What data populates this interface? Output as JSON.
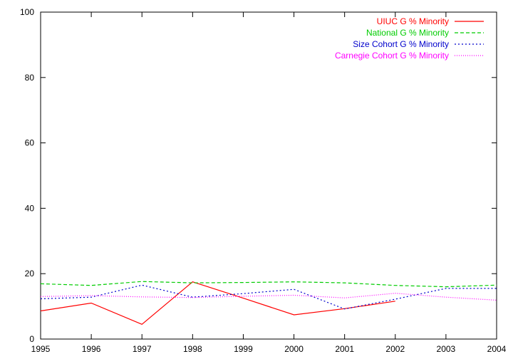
{
  "chart_data": {
    "type": "line",
    "title": "",
    "xlabel": "",
    "ylabel": "",
    "xlim": [
      1995,
      2004
    ],
    "ylim": [
      0,
      100
    ],
    "x_ticks": [
      "1995",
      "1996",
      "1997",
      "1998",
      "1999",
      "2000",
      "2001",
      "2002",
      "2003",
      "2004"
    ],
    "y_ticks": [
      "0",
      "20",
      "40",
      "60",
      "80",
      "100"
    ],
    "grid": false,
    "legend_position": "top-right",
    "series": [
      {
        "name": "UIUC G % Minority",
        "color": "#ff0000",
        "dash": "solid",
        "x": [
          1995,
          1996,
          1997,
          1998,
          1999,
          2000,
          2001,
          2002
        ],
        "y": [
          8.6,
          11.0,
          4.5,
          17.5,
          12.5,
          7.4,
          9.3,
          11.6
        ]
      },
      {
        "name": "National G % Minority",
        "color": "#00cc00",
        "dash": "dashed",
        "x": [
          1995,
          1996,
          1997,
          1998,
          1999,
          2000,
          2001,
          2002,
          2003,
          2004
        ],
        "y": [
          16.9,
          16.4,
          17.6,
          17.2,
          17.3,
          17.5,
          17.2,
          16.4,
          16.0,
          16.5
        ]
      },
      {
        "name": "Size Cohort G % Minority",
        "color": "#0000cc",
        "dash": "dotted",
        "x": [
          1995,
          1996,
          1997,
          1998,
          1999,
          2000,
          2001,
          2002,
          2003,
          2004
        ],
        "y": [
          12.3,
          12.8,
          16.5,
          12.8,
          13.9,
          15.2,
          9.2,
          12.2,
          15.5,
          15.5
        ]
      },
      {
        "name": "Carnegie Cohort G % Minority",
        "color": "#ff00ff",
        "dash": "fine-dotted",
        "x": [
          1995,
          1996,
          1997,
          1998,
          1999,
          2000,
          2001,
          2002,
          2003,
          2004
        ],
        "y": [
          13.0,
          13.3,
          12.9,
          12.7,
          13.1,
          13.4,
          12.6,
          14.0,
          12.8,
          11.9
        ]
      }
    ]
  }
}
